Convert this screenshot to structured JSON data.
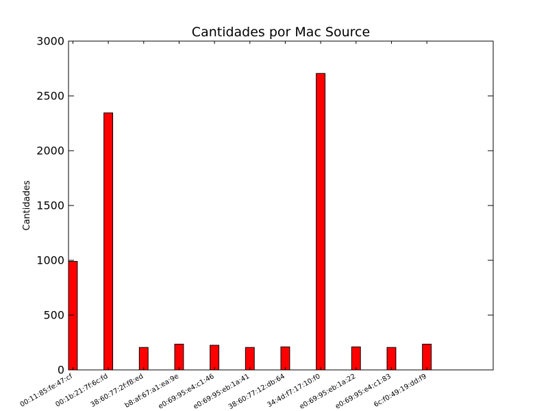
{
  "chart_data": {
    "type": "bar",
    "title": "Cantidades por Mac Source",
    "xlabel": "",
    "ylabel": "Cantidades",
    "categories": [
      "00:11:85:fe:47:cf",
      "00:1b:21:7f:6c:fd",
      "38:60:77:2f:f8:ed",
      "b8:af:67:a1:ea:9e",
      "e0:69:95:e4:c1:46",
      "e0:69:95:eb:1a:41",
      "38:60:77:12:db:64",
      "34:4d:f7:17:10:f0",
      "e0:69:95:eb:1a:22",
      "e0:69:95:e4:c1:83",
      "6c:f0:49:19:dd:f9"
    ],
    "values": [
      990,
      2345,
      205,
      235,
      225,
      205,
      210,
      2705,
      210,
      205,
      235
    ],
    "ylim": [
      0,
      3000
    ],
    "yticks": [
      0,
      500,
      1000,
      1500,
      2000,
      2500,
      3000
    ],
    "bar_color": "#ff0000",
    "bar_edge_color": "#000000",
    "grid": false,
    "legend": "none"
  }
}
